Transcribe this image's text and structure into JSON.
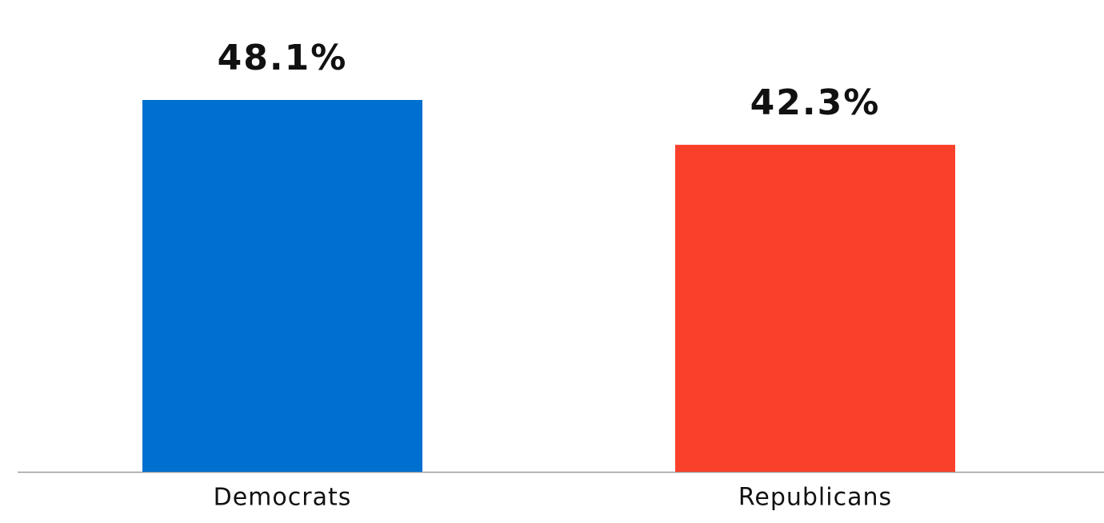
{
  "chart_data": {
    "type": "bar",
    "categories": [
      "Democrats",
      "Republicans"
    ],
    "values": [
      48.1,
      42.3
    ],
    "value_labels": [
      "48.1%",
      "42.3%"
    ],
    "colors": [
      "#0070d0",
      "#f9402a"
    ]
  }
}
